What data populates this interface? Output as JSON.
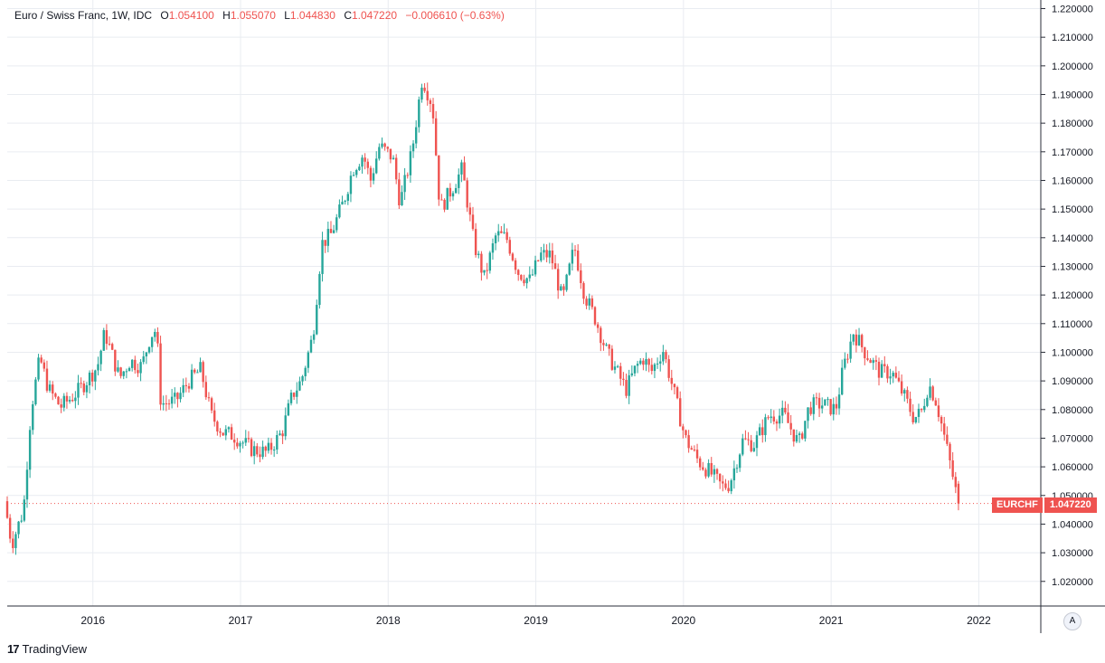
{
  "header": {
    "symbol_name": "Euro / Swiss Franc, 1W, IDC",
    "open_label": "O",
    "open": "1.054100",
    "high_label": "H",
    "high": "1.055070",
    "low_label": "L",
    "low": "1.044830",
    "close_label": "C",
    "close": "1.047220",
    "change": "−0.006610 (−0.63%)"
  },
  "price_tag": {
    "symbol": "EURCHF",
    "value": "1.047220",
    "color": "#ef5350"
  },
  "axis_button": {
    "label": "A"
  },
  "branding": {
    "logo": "17",
    "name": "TradingView"
  },
  "colors": {
    "up": "#26a69a",
    "down": "#ef5350",
    "grid": "#e9ecf1",
    "axis": "#2a2e39"
  },
  "chart_data": {
    "type": "candlestick",
    "title": "Euro / Swiss Franc, 1W, IDC",
    "x_start": 2015.42,
    "x_end": 2022.42,
    "xlim": [
      2015.42,
      2022.42
    ],
    "ylim": [
      1.0114,
      1.223
    ],
    "xticks": [
      {
        "value": 2016,
        "label": "2016"
      },
      {
        "value": 2017,
        "label": "2017"
      },
      {
        "value": 2018,
        "label": "2018"
      },
      {
        "value": 2019,
        "label": "2019"
      },
      {
        "value": 2020,
        "label": "2020"
      },
      {
        "value": 2021,
        "label": "2021"
      },
      {
        "value": 2022,
        "label": "2022"
      }
    ],
    "yticks": [
      "1.020000",
      "1.030000",
      "1.040000",
      "1.050000",
      "1.060000",
      "1.070000",
      "1.080000",
      "1.090000",
      "1.100000",
      "1.110000",
      "1.120000",
      "1.130000",
      "1.140000",
      "1.150000",
      "1.160000",
      "1.170000",
      "1.180000",
      "1.190000",
      "1.200000",
      "1.210000",
      "1.220000"
    ],
    "series_anchors": [
      [
        2015.42,
        1.048
      ],
      [
        2015.47,
        1.033
      ],
      [
        2015.55,
        1.045
      ],
      [
        2015.6,
        1.08
      ],
      [
        2015.66,
        1.098
      ],
      [
        2015.72,
        1.087
      ],
      [
        2015.8,
        1.081
      ],
      [
        2015.87,
        1.084
      ],
      [
        2015.93,
        1.087
      ],
      [
        2016.05,
        1.095
      ],
      [
        2016.1,
        1.107
      ],
      [
        2016.2,
        1.091
      ],
      [
        2016.27,
        1.097
      ],
      [
        2016.35,
        1.095
      ],
      [
        2016.41,
        1.106
      ],
      [
        2016.45,
        1.108
      ],
      [
        2016.48,
        1.082
      ],
      [
        2016.58,
        1.083
      ],
      [
        2016.67,
        1.09
      ],
      [
        2016.75,
        1.094
      ],
      [
        2016.82,
        1.078
      ],
      [
        2016.9,
        1.072
      ],
      [
        2016.97,
        1.071
      ],
      [
        2017.1,
        1.066
      ],
      [
        2017.2,
        1.065
      ],
      [
        2017.3,
        1.072
      ],
      [
        2017.37,
        1.085
      ],
      [
        2017.43,
        1.09
      ],
      [
        2017.51,
        1.106
      ],
      [
        2017.57,
        1.138
      ],
      [
        2017.63,
        1.141
      ],
      [
        2017.72,
        1.153
      ],
      [
        2017.78,
        1.164
      ],
      [
        2017.85,
        1.169
      ],
      [
        2017.9,
        1.16
      ],
      [
        2017.96,
        1.172
      ],
      [
        2018.05,
        1.168
      ],
      [
        2018.1,
        1.152
      ],
      [
        2018.18,
        1.17
      ],
      [
        2018.25,
        1.196
      ],
      [
        2018.32,
        1.186
      ],
      [
        2018.37,
        1.15
      ],
      [
        2018.45,
        1.157
      ],
      [
        2018.52,
        1.164
      ],
      [
        2018.6,
        1.138
      ],
      [
        2018.67,
        1.126
      ],
      [
        2018.75,
        1.141
      ],
      [
        2018.82,
        1.14
      ],
      [
        2018.9,
        1.128
      ],
      [
        2018.98,
        1.125
      ],
      [
        2019.05,
        1.134
      ],
      [
        2019.12,
        1.134
      ],
      [
        2019.2,
        1.118
      ],
      [
        2019.28,
        1.137
      ],
      [
        2019.35,
        1.12
      ],
      [
        2019.42,
        1.112
      ],
      [
        2019.5,
        1.1
      ],
      [
        2019.57,
        1.093
      ],
      [
        2019.63,
        1.087
      ],
      [
        2019.7,
        1.095
      ],
      [
        2019.75,
        1.098
      ],
      [
        2019.8,
        1.093
      ],
      [
        2019.88,
        1.101
      ],
      [
        2019.95,
        1.087
      ],
      [
        2020.03,
        1.07
      ],
      [
        2020.12,
        1.062
      ],
      [
        2020.2,
        1.058
      ],
      [
        2020.28,
        1.053
      ],
      [
        2020.33,
        1.054
      ],
      [
        2020.42,
        1.069
      ],
      [
        2020.5,
        1.068
      ],
      [
        2020.6,
        1.078
      ],
      [
        2020.7,
        1.078
      ],
      [
        2020.8,
        1.068
      ],
      [
        2020.87,
        1.081
      ],
      [
        2020.95,
        1.082
      ],
      [
        2021.05,
        1.08
      ],
      [
        2021.1,
        1.094
      ],
      [
        2021.17,
        1.107
      ],
      [
        2021.25,
        1.1
      ],
      [
        2021.35,
        1.093
      ],
      [
        2021.43,
        1.093
      ],
      [
        2021.52,
        1.084
      ],
      [
        2021.58,
        1.077
      ],
      [
        2021.63,
        1.079
      ],
      [
        2021.68,
        1.089
      ],
      [
        2021.73,
        1.083
      ],
      [
        2021.78,
        1.072
      ],
      [
        2021.85,
        1.055
      ],
      [
        2021.88,
        1.047
      ]
    ],
    "last_candle": {
      "open": 1.0541,
      "high": 1.05507,
      "low": 1.04483,
      "close": 1.04722
    },
    "last_value": 1.04722
  }
}
